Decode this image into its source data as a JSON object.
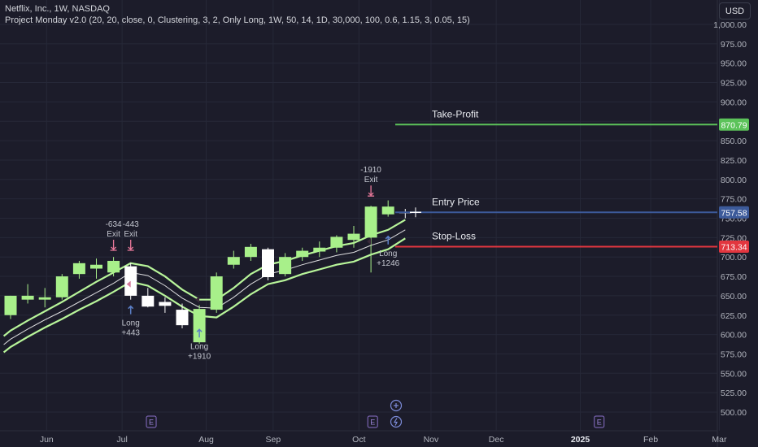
{
  "legend": {
    "symbol_line": "Netflix, Inc., 1W, NASDAQ",
    "indicator_line": "Project Monday v2.0 (20, 20, close, 0, Clustering, 3, 2, Only Long, 1W, 50, 14, 1D, 30,000, 100, 0.6, 1.15, 3, 0.05, 15)"
  },
  "currency": "USD",
  "colors": {
    "background": "#1c1c2a",
    "bull": "#a8f08a",
    "bear": "#ffffff",
    "take_profit": "#5cc35a",
    "entry": "#3c5a9a",
    "stop_loss": "#e2363f",
    "ribbon_outer": "#b8f59a",
    "ribbon_inner": "#ffffff",
    "signal_long": "#5b7fc7",
    "signal_exit": "#e8789a"
  },
  "chart_data": {
    "type": "candlestick",
    "y_axis": {
      "min": 500,
      "max": 1000,
      "ticks": [
        "1,000.00",
        "975.00",
        "950.00",
        "925.00",
        "900.00",
        "875.00",
        "850.00",
        "825.00",
        "800.00",
        "775.00",
        "750.00",
        "725.00",
        "700.00",
        "675.00",
        "650.00",
        "625.00",
        "600.00",
        "575.00",
        "550.00",
        "525.00",
        "500.00"
      ]
    },
    "x_axis": {
      "labels": [
        {
          "text": "Jun",
          "week": 2.1,
          "bold": false
        },
        {
          "text": "Jul",
          "week": 6.5,
          "bold": false
        },
        {
          "text": "Aug",
          "week": 11.4,
          "bold": false
        },
        {
          "text": "Sep",
          "week": 15.3,
          "bold": false
        },
        {
          "text": "Oct",
          "week": 20.3,
          "bold": false
        },
        {
          "text": "Nov",
          "week": 24.5,
          "bold": false
        },
        {
          "text": "Dec",
          "week": 28.3,
          "bold": false
        },
        {
          "text": "2025",
          "week": 33.2,
          "bold": true
        },
        {
          "text": "Feb",
          "week": 37.3,
          "bold": false
        },
        {
          "text": "Mar",
          "week": 41.3,
          "bold": false
        }
      ]
    },
    "candles": [
      {
        "week": 0,
        "open": 625,
        "high": 650,
        "low": 620,
        "close": 650
      },
      {
        "week": 1,
        "open": 645,
        "high": 665,
        "low": 640,
        "close": 650
      },
      {
        "week": 2,
        "open": 645,
        "high": 660,
        "low": 635,
        "close": 648
      },
      {
        "week": 3,
        "open": 648,
        "high": 678,
        "low": 645,
        "close": 675
      },
      {
        "week": 4,
        "open": 678,
        "high": 695,
        "low": 672,
        "close": 692
      },
      {
        "week": 5,
        "open": 685,
        "high": 698,
        "low": 672,
        "close": 690
      },
      {
        "week": 6,
        "open": 680,
        "high": 700,
        "low": 675,
        "close": 695
      },
      {
        "week": 7,
        "open": 688,
        "high": 692,
        "low": 645,
        "close": 650
      },
      {
        "week": 8,
        "open": 650,
        "high": 660,
        "low": 635,
        "close": 636
      },
      {
        "week": 9,
        "open": 642,
        "high": 648,
        "low": 628,
        "close": 637
      },
      {
        "week": 10,
        "open": 632,
        "high": 640,
        "low": 608,
        "close": 612
      },
      {
        "week": 11,
        "open": 590,
        "high": 638,
        "low": 588,
        "close": 633
      },
      {
        "week": 12,
        "open": 632,
        "high": 680,
        "low": 628,
        "close": 675
      },
      {
        "week": 13,
        "open": 690,
        "high": 708,
        "low": 685,
        "close": 700
      },
      {
        "week": 14,
        "open": 700,
        "high": 717,
        "low": 695,
        "close": 713
      },
      {
        "week": 15,
        "open": 710,
        "high": 712,
        "low": 670,
        "close": 674
      },
      {
        "week": 16,
        "open": 678,
        "high": 705,
        "low": 675,
        "close": 700
      },
      {
        "week": 17,
        "open": 700,
        "high": 712,
        "low": 695,
        "close": 708
      },
      {
        "week": 18,
        "open": 707,
        "high": 720,
        "low": 700,
        "close": 712
      },
      {
        "week": 19,
        "open": 712,
        "high": 728,
        "low": 706,
        "close": 726
      },
      {
        "week": 20,
        "open": 722,
        "high": 740,
        "low": 712,
        "close": 730
      },
      {
        "week": 21,
        "open": 725,
        "high": 766,
        "low": 680,
        "close": 765
      },
      {
        "week": 22,
        "open": 755,
        "high": 773,
        "low": 752,
        "close": 765
      },
      {
        "week": 23,
        "open": 758,
        "high": 762,
        "low": 750,
        "close": 757
      }
    ],
    "ribbon": {
      "weeks": [
        -0.4,
        0,
        1,
        2,
        3,
        4,
        5,
        6,
        7,
        8,
        9,
        10,
        11,
        12,
        13,
        14,
        15,
        16,
        17,
        18,
        19,
        20,
        21,
        22,
        23
      ],
      "outer_upper": [
        598,
        605,
        618,
        630,
        642,
        655,
        668,
        680,
        692,
        688,
        675,
        658,
        645,
        645,
        660,
        678,
        690,
        695,
        702,
        708,
        714,
        718,
        728,
        735,
        748
      ],
      "inner": [
        587,
        594,
        607,
        619,
        630,
        642,
        654,
        666,
        680,
        676,
        663,
        647,
        635,
        634,
        648,
        665,
        678,
        683,
        690,
        696,
        702,
        706,
        715,
        722,
        735
      ],
      "outer_lower": [
        577,
        584,
        597,
        609,
        620,
        632,
        643,
        655,
        668,
        663,
        650,
        636,
        624,
        622,
        636,
        652,
        665,
        670,
        678,
        684,
        690,
        694,
        703,
        710,
        724
      ]
    },
    "levels": [
      {
        "label": "Take-Profit",
        "value": 870.79,
        "value_text": "870.79",
        "color": "#5cc35a"
      },
      {
        "label": "Entry Price",
        "value": 757.58,
        "value_text": "757.58",
        "color": "#3c5a9a"
      },
      {
        "label": "Stop-Loss",
        "value": 713.34,
        "value_text": "713.34",
        "color": "#e2363f"
      }
    ],
    "signals": [
      {
        "kind": "exit",
        "week": 6,
        "value": 695,
        "text": [
          "-634",
          "Exit"
        ]
      },
      {
        "kind": "exit",
        "week": 7,
        "value": 695,
        "text": [
          "-443",
          "Exit"
        ]
      },
      {
        "kind": "long",
        "week": 7,
        "value": 645,
        "text": [
          "Long",
          "+443"
        ]
      },
      {
        "kind": "long",
        "week": 11,
        "value": 615,
        "text": [
          "Long",
          "+1910"
        ]
      },
      {
        "kind": "exit",
        "week": 21,
        "value": 765,
        "text": [
          "-1910",
          "Exit"
        ]
      },
      {
        "kind": "long",
        "week": 22,
        "value": 735,
        "text": [
          "Long",
          "+1246"
        ]
      }
    ],
    "earnings_markers": [
      {
        "week": 8.2,
        "text": "E"
      },
      {
        "week": 21.1,
        "text": "E"
      },
      {
        "week": 34.3,
        "text": "E"
      }
    ]
  }
}
